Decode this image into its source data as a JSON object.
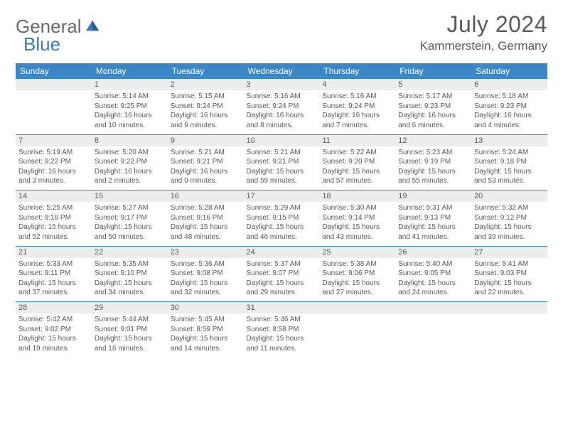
{
  "logo": {
    "part1": "General",
    "part2": "Blue"
  },
  "title": "July 2024",
  "location": "Kammerstein, Germany",
  "colors": {
    "header_bg": "#3b86c7",
    "header_text": "#ffffff",
    "daynum_bg": "#eceded",
    "divider": "#3b86c7",
    "body_text": "#595959",
    "page_bg": "#ffffff",
    "logo_gray": "#6a6a6a",
    "logo_blue": "#3b7abf"
  },
  "weekdays": [
    "Sunday",
    "Monday",
    "Tuesday",
    "Wednesday",
    "Thursday",
    "Friday",
    "Saturday"
  ],
  "weeks": [
    {
      "nums": [
        "",
        "1",
        "2",
        "3",
        "4",
        "5",
        "6"
      ],
      "cells": [
        null,
        {
          "sr": "Sunrise: 5:14 AM",
          "ss": "Sunset: 9:25 PM",
          "d1": "Daylight: 16 hours",
          "d2": "and 10 minutes."
        },
        {
          "sr": "Sunrise: 5:15 AM",
          "ss": "Sunset: 9:24 PM",
          "d1": "Daylight: 16 hours",
          "d2": "and 9 minutes."
        },
        {
          "sr": "Sunrise: 5:16 AM",
          "ss": "Sunset: 9:24 PM",
          "d1": "Daylight: 16 hours",
          "d2": "and 8 minutes."
        },
        {
          "sr": "Sunrise: 5:16 AM",
          "ss": "Sunset: 9:24 PM",
          "d1": "Daylight: 16 hours",
          "d2": "and 7 minutes."
        },
        {
          "sr": "Sunrise: 5:17 AM",
          "ss": "Sunset: 9:23 PM",
          "d1": "Daylight: 16 hours",
          "d2": "and 6 minutes."
        },
        {
          "sr": "Sunrise: 5:18 AM",
          "ss": "Sunset: 9:23 PM",
          "d1": "Daylight: 16 hours",
          "d2": "and 4 minutes."
        }
      ]
    },
    {
      "nums": [
        "7",
        "8",
        "9",
        "10",
        "11",
        "12",
        "13"
      ],
      "cells": [
        {
          "sr": "Sunrise: 5:19 AM",
          "ss": "Sunset: 9:22 PM",
          "d1": "Daylight: 16 hours",
          "d2": "and 3 minutes."
        },
        {
          "sr": "Sunrise: 5:20 AM",
          "ss": "Sunset: 9:22 PM",
          "d1": "Daylight: 16 hours",
          "d2": "and 2 minutes."
        },
        {
          "sr": "Sunrise: 5:21 AM",
          "ss": "Sunset: 9:21 PM",
          "d1": "Daylight: 16 hours",
          "d2": "and 0 minutes."
        },
        {
          "sr": "Sunrise: 5:21 AM",
          "ss": "Sunset: 9:21 PM",
          "d1": "Daylight: 15 hours",
          "d2": "and 59 minutes."
        },
        {
          "sr": "Sunrise: 5:22 AM",
          "ss": "Sunset: 9:20 PM",
          "d1": "Daylight: 15 hours",
          "d2": "and 57 minutes."
        },
        {
          "sr": "Sunrise: 5:23 AM",
          "ss": "Sunset: 9:19 PM",
          "d1": "Daylight: 15 hours",
          "d2": "and 55 minutes."
        },
        {
          "sr": "Sunrise: 5:24 AM",
          "ss": "Sunset: 9:18 PM",
          "d1": "Daylight: 15 hours",
          "d2": "and 53 minutes."
        }
      ]
    },
    {
      "nums": [
        "14",
        "15",
        "16",
        "17",
        "18",
        "19",
        "20"
      ],
      "cells": [
        {
          "sr": "Sunrise: 5:25 AM",
          "ss": "Sunset: 9:18 PM",
          "d1": "Daylight: 15 hours",
          "d2": "and 52 minutes."
        },
        {
          "sr": "Sunrise: 5:27 AM",
          "ss": "Sunset: 9:17 PM",
          "d1": "Daylight: 15 hours",
          "d2": "and 50 minutes."
        },
        {
          "sr": "Sunrise: 5:28 AM",
          "ss": "Sunset: 9:16 PM",
          "d1": "Daylight: 15 hours",
          "d2": "and 48 minutes."
        },
        {
          "sr": "Sunrise: 5:29 AM",
          "ss": "Sunset: 9:15 PM",
          "d1": "Daylight: 15 hours",
          "d2": "and 46 minutes."
        },
        {
          "sr": "Sunrise: 5:30 AM",
          "ss": "Sunset: 9:14 PM",
          "d1": "Daylight: 15 hours",
          "d2": "and 43 minutes."
        },
        {
          "sr": "Sunrise: 5:31 AM",
          "ss": "Sunset: 9:13 PM",
          "d1": "Daylight: 15 hours",
          "d2": "and 41 minutes."
        },
        {
          "sr": "Sunrise: 5:32 AM",
          "ss": "Sunset: 9:12 PM",
          "d1": "Daylight: 15 hours",
          "d2": "and 39 minutes."
        }
      ]
    },
    {
      "nums": [
        "21",
        "22",
        "23",
        "24",
        "25",
        "26",
        "27"
      ],
      "cells": [
        {
          "sr": "Sunrise: 5:33 AM",
          "ss": "Sunset: 9:11 PM",
          "d1": "Daylight: 15 hours",
          "d2": "and 37 minutes."
        },
        {
          "sr": "Sunrise: 5:35 AM",
          "ss": "Sunset: 9:10 PM",
          "d1": "Daylight: 15 hours",
          "d2": "and 34 minutes."
        },
        {
          "sr": "Sunrise: 5:36 AM",
          "ss": "Sunset: 9:08 PM",
          "d1": "Daylight: 15 hours",
          "d2": "and 32 minutes."
        },
        {
          "sr": "Sunrise: 5:37 AM",
          "ss": "Sunset: 9:07 PM",
          "d1": "Daylight: 15 hours",
          "d2": "and 29 minutes."
        },
        {
          "sr": "Sunrise: 5:38 AM",
          "ss": "Sunset: 9:06 PM",
          "d1": "Daylight: 15 hours",
          "d2": "and 27 minutes."
        },
        {
          "sr": "Sunrise: 5:40 AM",
          "ss": "Sunset: 9:05 PM",
          "d1": "Daylight: 15 hours",
          "d2": "and 24 minutes."
        },
        {
          "sr": "Sunrise: 5:41 AM",
          "ss": "Sunset: 9:03 PM",
          "d1": "Daylight: 15 hours",
          "d2": "and 22 minutes."
        }
      ]
    },
    {
      "nums": [
        "28",
        "29",
        "30",
        "31",
        "",
        "",
        ""
      ],
      "cells": [
        {
          "sr": "Sunrise: 5:42 AM",
          "ss": "Sunset: 9:02 PM",
          "d1": "Daylight: 15 hours",
          "d2": "and 19 minutes."
        },
        {
          "sr": "Sunrise: 5:44 AM",
          "ss": "Sunset: 9:01 PM",
          "d1": "Daylight: 15 hours",
          "d2": "and 16 minutes."
        },
        {
          "sr": "Sunrise: 5:45 AM",
          "ss": "Sunset: 8:59 PM",
          "d1": "Daylight: 15 hours",
          "d2": "and 14 minutes."
        },
        {
          "sr": "Sunrise: 5:46 AM",
          "ss": "Sunset: 8:58 PM",
          "d1": "Daylight: 15 hours",
          "d2": "and 11 minutes."
        },
        null,
        null,
        null
      ]
    }
  ]
}
